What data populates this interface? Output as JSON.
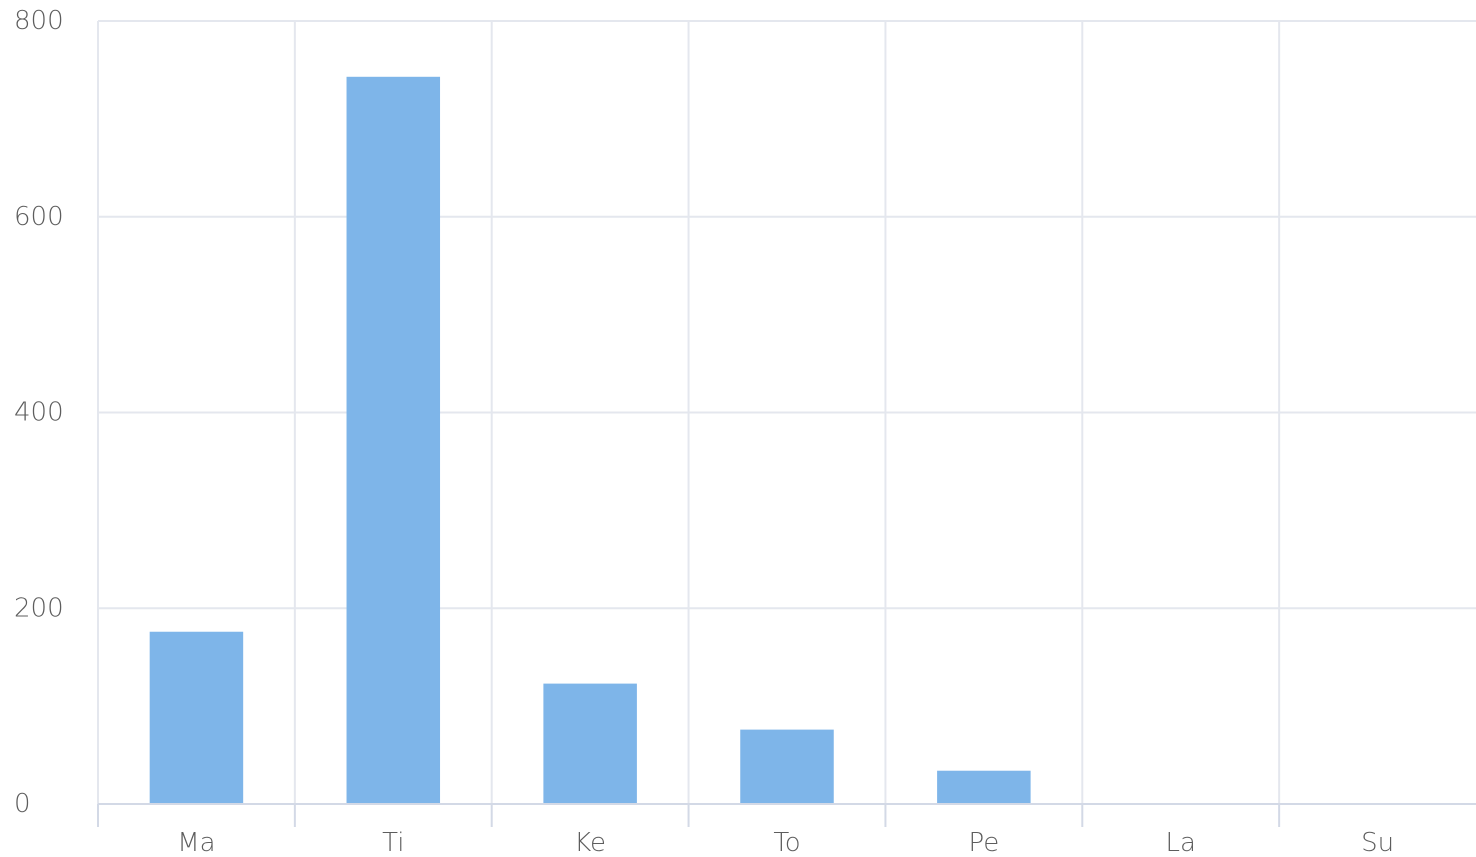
{
  "chart_data": {
    "type": "bar",
    "title": "",
    "xlabel": "",
    "ylabel": "",
    "categories": [
      "Ma",
      "Ti",
      "Ke",
      "To",
      "Pe",
      "La",
      "Su"
    ],
    "values": [
      176,
      743,
      123,
      76,
      34,
      0,
      0
    ],
    "ylim": [
      0,
      800
    ],
    "yticks": [
      "0",
      "200",
      "400",
      "600",
      "800"
    ],
    "grid": true,
    "legend": "none",
    "colors": {
      "bar": "#7eb5e9",
      "grid": "#e4e7ee",
      "axis": "#d3d9e6",
      "label": "#5d5d5d"
    }
  }
}
